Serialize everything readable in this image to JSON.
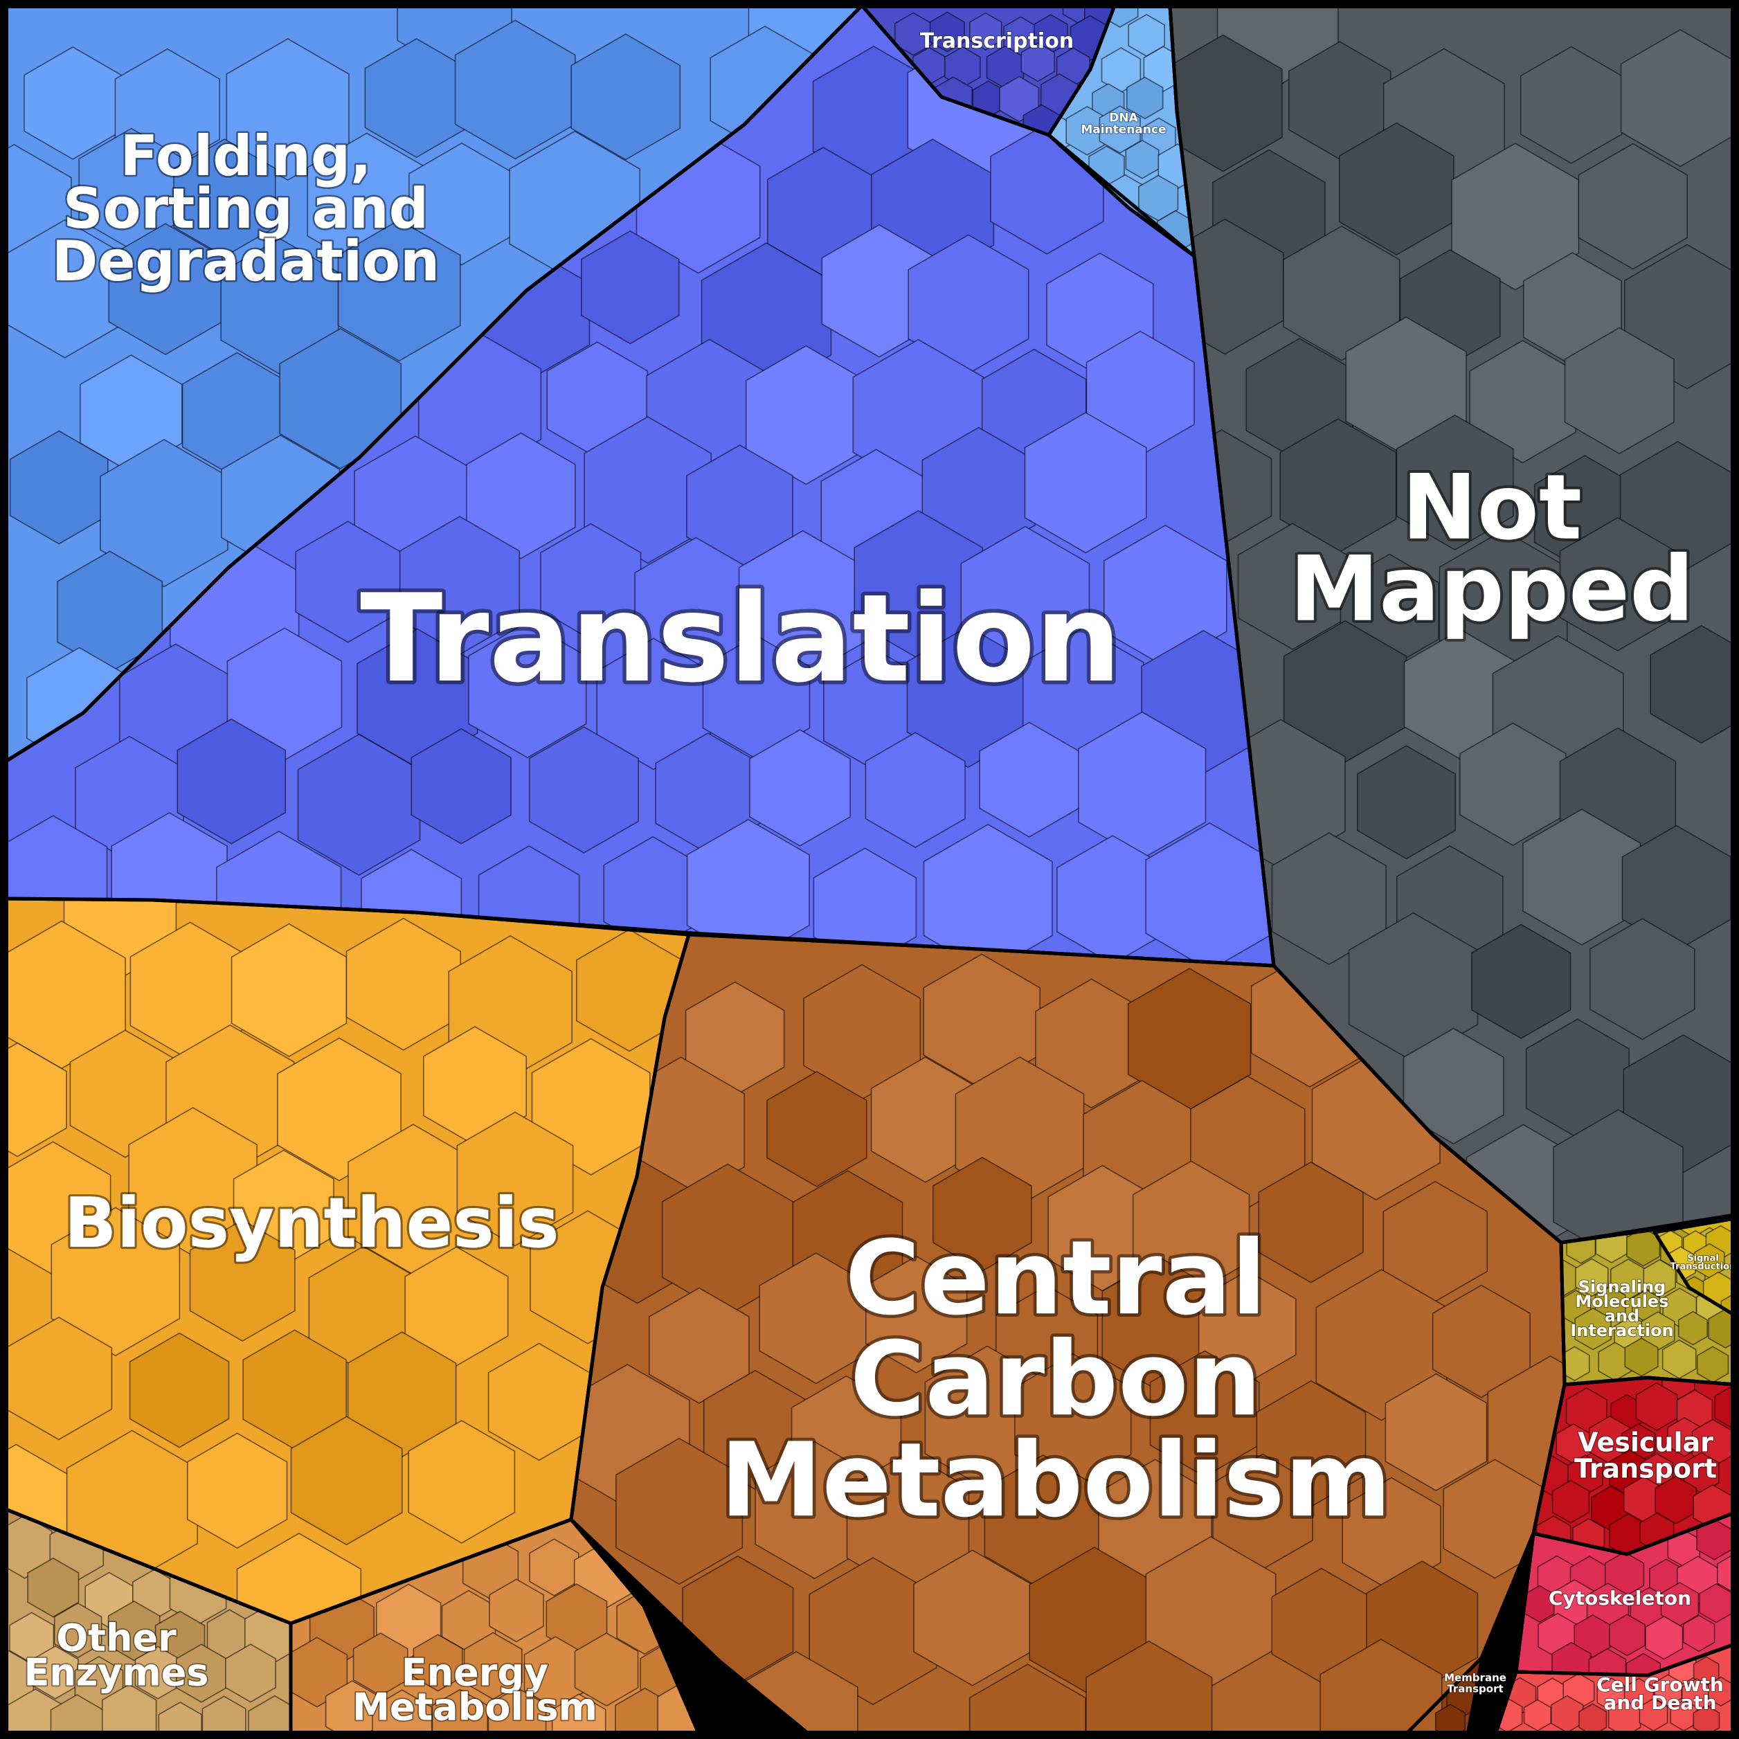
{
  "regions": [
    {
      "id": "folding",
      "label_lines": [
        "Folding,",
        "Sorting and",
        "Degradation"
      ],
      "color": "#5f96f0"
    },
    {
      "id": "transcription",
      "label_lines": [
        "Transcription"
      ],
      "color": "#4a4fc9"
    },
    {
      "id": "dna-maintenance",
      "label_lines": [
        "DNA",
        "Maintenance"
      ],
      "color": "#79b4f3"
    },
    {
      "id": "translation",
      "label_lines": [
        "Translation"
      ],
      "color": "#5f6ef2"
    },
    {
      "id": "not-mapped",
      "label_lines": [
        "Not",
        "Mapped"
      ],
      "color": "#54595e"
    },
    {
      "id": "biosynthesis",
      "label_lines": [
        "Biosynthesis"
      ],
      "color": "#f0a629"
    },
    {
      "id": "central-carbon-metabolism",
      "label_lines": [
        "Central",
        "Carbon",
        "Metabolism"
      ],
      "color": "#b0642a"
    },
    {
      "id": "other-enzymes",
      "label_lines": [
        "Other",
        "Enzymes"
      ],
      "color": "#c9a064"
    },
    {
      "id": "energy-metabolism",
      "label_lines": [
        "Energy",
        "Metabolism"
      ],
      "color": "#d88c46"
    },
    {
      "id": "membrane-transport",
      "label_lines": [
        "Membrane",
        "Transport"
      ],
      "color": "#8a4014"
    },
    {
      "id": "signaling-molecules",
      "label_lines": [
        "Signaling",
        "Molecules",
        "and",
        "Interaction"
      ],
      "color": "#b9a62c"
    },
    {
      "id": "signal-transduction",
      "label_lines": [
        "Signal",
        "Transduction"
      ],
      "color": "#d8b818"
    },
    {
      "id": "vesicular-transport",
      "label_lines": [
        "Vesicular",
        "Transport"
      ],
      "color": "#c4121e"
    },
    {
      "id": "cytoskeleton",
      "label_lines": [
        "Cytoskeleton"
      ],
      "color": "#e33358"
    },
    {
      "id": "cell-growth-and-death",
      "label_lines": [
        "Cell Growth",
        "and Death"
      ],
      "color": "#f04d4f"
    }
  ]
}
